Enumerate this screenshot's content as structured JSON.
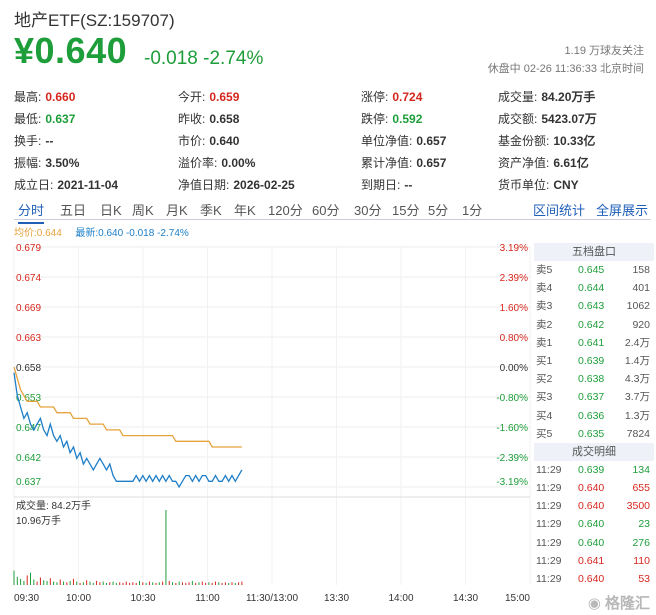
{
  "header": {
    "title": "地产ETF(SZ:159707)",
    "price": "¥0.640",
    "change": "-0.018 -2.74%",
    "followers": "1.19 万球友关注",
    "market_status": "休盘中 02-26 11:36:33 北京时间"
  },
  "stats": [
    [
      {
        "label": "最高:",
        "value": "0.660",
        "color": "red"
      },
      {
        "label": "今开:",
        "value": "0.659",
        "color": "red"
      },
      {
        "label": "涨停:",
        "value": "0.724",
        "color": "red"
      },
      {
        "label": "成交量:",
        "value": "84.20万手",
        "color": ""
      }
    ],
    [
      {
        "label": "最低:",
        "value": "0.637",
        "color": "green"
      },
      {
        "label": "昨收:",
        "value": "0.658",
        "color": ""
      },
      {
        "label": "跌停:",
        "value": "0.592",
        "color": "green"
      },
      {
        "label": "成交额:",
        "value": "5423.07万",
        "color": ""
      }
    ],
    [
      {
        "label": "换手:",
        "value": "--",
        "color": ""
      },
      {
        "label": "市价:",
        "value": "0.640",
        "color": ""
      },
      {
        "label": "单位净值:",
        "value": "0.657",
        "color": ""
      },
      {
        "label": "基金份额:",
        "value": "10.33亿",
        "color": ""
      }
    ],
    [
      {
        "label": "振幅:",
        "value": "3.50%",
        "color": ""
      },
      {
        "label": "溢价率:",
        "value": "0.00%",
        "color": ""
      },
      {
        "label": "累计净值:",
        "value": "0.657",
        "color": ""
      },
      {
        "label": "资产净值:",
        "value": "6.61亿",
        "color": ""
      }
    ],
    [
      {
        "label": "成立日:",
        "value": "2021-11-04",
        "color": ""
      },
      {
        "label": "净值日期:",
        "value": "2026-02-25",
        "color": ""
      },
      {
        "label": "到期日:",
        "value": "--",
        "color": ""
      },
      {
        "label": "货币单位:",
        "value": "CNY",
        "color": ""
      }
    ]
  ],
  "tabs": [
    "分时",
    "五日",
    "日K",
    "周K",
    "月K",
    "季K",
    "年K",
    "120分",
    "60分",
    "30分",
    "15分",
    "5分",
    "1分"
  ],
  "tabs_right": [
    "区间统计",
    "全屏展示"
  ],
  "legend": {
    "avg": "均价:0.644",
    "latest": "最新:0.640 -0.018 -2.74%"
  },
  "chart_data": {
    "type": "line",
    "price_ticks": [
      "0.679",
      "0.674",
      "0.669",
      "0.663",
      "0.658",
      "0.653",
      "0.647",
      "0.642",
      "0.637"
    ],
    "pct_ticks": [
      "3.19%",
      "2.39%",
      "1.60%",
      "0.80%",
      "0.00%",
      "-0.80%",
      "-1.60%",
      "-2.39%",
      "-3.19%"
    ],
    "price_range": [
      0.637,
      0.679
    ],
    "pre_close": 0.658,
    "time_ticks": [
      "09:30",
      "10:00",
      "10:30",
      "11:00",
      "11:30/13:00",
      "13:30",
      "14:00",
      "14:30",
      "15:00"
    ],
    "volume_label": "成交量: 84.2万手",
    "volume_max_label": "10.96万手",
    "series": [
      {
        "name": "最新",
        "color": "#1e7fc8",
        "y": [
          0.657,
          0.653,
          0.651,
          0.649,
          0.65,
          0.648,
          0.647,
          0.648,
          0.649,
          0.647,
          0.646,
          0.648,
          0.646,
          0.645,
          0.646,
          0.644,
          0.645,
          0.643,
          0.644,
          0.642,
          0.643,
          0.641,
          0.642,
          0.641,
          0.64,
          0.641,
          0.642,
          0.641,
          0.64,
          0.641,
          0.639,
          0.638,
          0.638,
          0.638,
          0.638,
          0.638,
          0.638,
          0.639,
          0.638,
          0.639,
          0.638,
          0.639,
          0.638,
          0.639,
          0.638,
          0.639,
          0.638,
          0.639,
          0.638,
          0.638,
          0.637,
          0.638,
          0.639,
          0.639,
          0.638,
          0.639,
          0.638,
          0.639,
          0.639,
          0.638,
          0.638,
          0.639,
          0.638,
          0.638,
          0.639,
          0.638,
          0.639,
          0.638,
          0.639,
          0.64
        ]
      },
      {
        "name": "均价",
        "color": "#e6a23c",
        "y": [
          0.658,
          0.656,
          0.654,
          0.653,
          0.652,
          0.652,
          0.652,
          0.652,
          0.651,
          0.651,
          0.651,
          0.651,
          0.651,
          0.65,
          0.65,
          0.65,
          0.65,
          0.65,
          0.649,
          0.649,
          0.649,
          0.649,
          0.649,
          0.648,
          0.648,
          0.648,
          0.648,
          0.648,
          0.647,
          0.647,
          0.647,
          0.647,
          0.647,
          0.646,
          0.646,
          0.646,
          0.646,
          0.646,
          0.646,
          0.646,
          0.646,
          0.646,
          0.646,
          0.646,
          0.646,
          0.646,
          0.646,
          0.646,
          0.646,
          0.645,
          0.645,
          0.645,
          0.645,
          0.645,
          0.645,
          0.645,
          0.645,
          0.645,
          0.645,
          0.645,
          0.644,
          0.644,
          0.644,
          0.644,
          0.644,
          0.644,
          0.644,
          0.644,
          0.644,
          0.644
        ]
      }
    ],
    "volume": [
      2.1,
      1.2,
      0.9,
      0.6,
      1.4,
      1.8,
      0.8,
      0.5,
      1.1,
      0.7,
      0.6,
      1.0,
      0.5,
      0.4,
      0.8,
      0.5,
      0.4,
      0.6,
      0.9,
      0.5,
      0.3,
      0.4,
      0.7,
      0.5,
      0.3,
      0.6,
      0.4,
      0.5,
      0.3,
      0.4,
      0.5,
      0.3,
      0.4,
      0.3,
      0.5,
      0.3,
      0.4,
      0.3,
      0.6,
      0.4,
      0.3,
      0.5,
      0.4,
      0.3,
      0.4,
      0.5,
      10.96,
      0.6,
      0.4,
      0.3,
      0.5,
      0.4,
      0.3,
      0.4,
      0.6,
      0.3,
      0.4,
      0.5,
      0.3,
      0.4,
      0.3,
      0.5,
      0.4,
      0.3,
      0.4,
      0.3,
      0.4,
      0.3,
      0.4,
      0.5
    ]
  },
  "orderbook": {
    "title": "五档盘口",
    "asks": [
      {
        "name": "卖5",
        "price": "0.645",
        "vol": "158"
      },
      {
        "name": "卖4",
        "price": "0.644",
        "vol": "401"
      },
      {
        "name": "卖3",
        "price": "0.643",
        "vol": "1062"
      },
      {
        "name": "卖2",
        "price": "0.642",
        "vol": "920"
      },
      {
        "name": "卖1",
        "price": "0.641",
        "vol": "2.4万"
      }
    ],
    "bids": [
      {
        "name": "买1",
        "price": "0.639",
        "vol": "1.4万"
      },
      {
        "name": "买2",
        "price": "0.638",
        "vol": "4.3万"
      },
      {
        "name": "买3",
        "price": "0.637",
        "vol": "3.7万"
      },
      {
        "name": "买4",
        "price": "0.636",
        "vol": "1.3万"
      },
      {
        "name": "买5",
        "price": "0.635",
        "vol": "7824"
      }
    ],
    "trades_title": "成交明细",
    "trades": [
      {
        "time": "11:29",
        "price": "0.639",
        "vol": "134",
        "dir": "down"
      },
      {
        "time": "11:29",
        "price": "0.640",
        "vol": "655",
        "dir": "up"
      },
      {
        "time": "11:29",
        "price": "0.640",
        "vol": "3500",
        "dir": "up"
      },
      {
        "time": "11:29",
        "price": "0.640",
        "vol": "23",
        "dir": "down"
      },
      {
        "time": "11:29",
        "price": "0.640",
        "vol": "276",
        "dir": "down"
      },
      {
        "time": "11:29",
        "price": "0.641",
        "vol": "110",
        "dir": "up"
      },
      {
        "time": "11:29",
        "price": "0.640",
        "vol": "53",
        "dir": "up"
      }
    ]
  },
  "watermark": "格隆汇"
}
